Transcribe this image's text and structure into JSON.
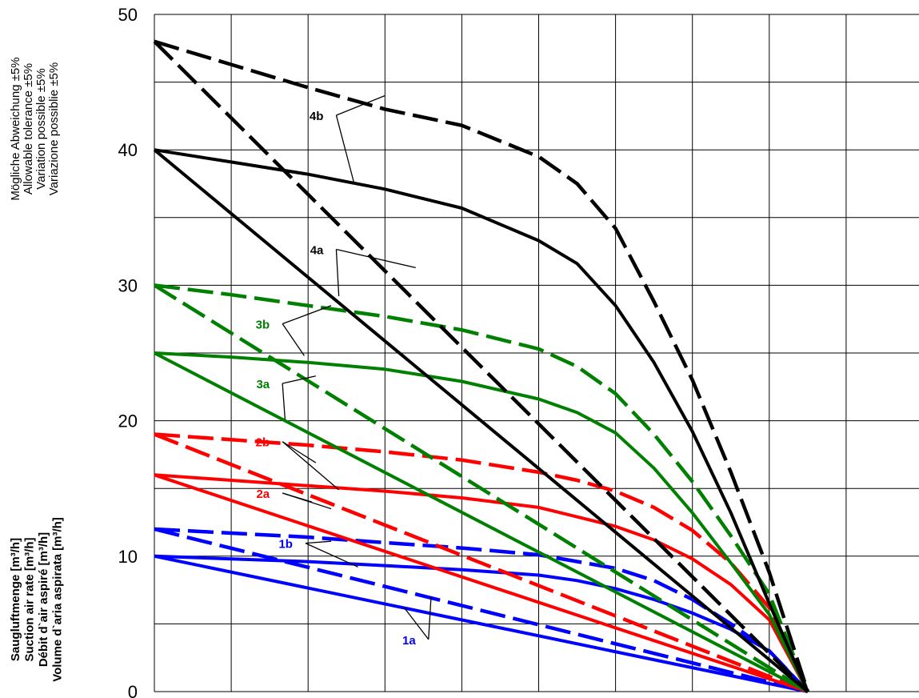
{
  "chart_data": {
    "type": "line",
    "ylim": [
      0,
      50
    ],
    "y_ticks": [
      "0",
      "10",
      "20",
      "30",
      "40",
      "50"
    ],
    "grid": true,
    "y_axis_label_lines": [
      "Saugluftmenge [m³/h]",
      "Suction air rate [m³/h]",
      "Débit d`air aspiré [m³/h]",
      "Volume d`aria aspirata [m³/h]"
    ],
    "tolerance_note_lines": [
      "Mögliche Abweichung ±5%",
      "Allowable tolerance ±5%",
      "Variation possible ±5%",
      "Variazione possiblie ±5%"
    ],
    "colors": {
      "1": "#0000ff",
      "2": "#ff0000",
      "3": "#008000",
      "4": "#000000"
    },
    "series": [
      {
        "label": "1a",
        "color": "#0000ff",
        "dashed": false,
        "x": [
          0,
          8.5
        ],
        "y": [
          10,
          0
        ]
      },
      {
        "label": "1a",
        "color": "#0000ff",
        "dashed": true,
        "x": [
          0,
          8.5
        ],
        "y": [
          12,
          0
        ]
      },
      {
        "label": "1b",
        "color": "#0000ff",
        "dashed": false,
        "x": [
          0,
          1,
          2,
          3,
          4,
          5,
          5.5,
          6,
          6.5,
          7,
          7.5,
          8,
          8.5
        ],
        "y": [
          10,
          9.8,
          9.6,
          9.3,
          9,
          8.6,
          8.2,
          7.6,
          6.8,
          5.8,
          4.6,
          3,
          0
        ]
      },
      {
        "label": "1b",
        "color": "#0000ff",
        "dashed": true,
        "x": [
          0,
          1,
          2,
          3,
          4,
          5,
          6,
          6.5,
          7,
          7.5,
          8,
          8.5
        ],
        "y": [
          12,
          11.7,
          11.4,
          11,
          10.6,
          10.1,
          9.1,
          8.2,
          6.8,
          5,
          3,
          0
        ]
      },
      {
        "label": "2a",
        "color": "#ff0000",
        "dashed": false,
        "x": [
          0,
          8.5
        ],
        "y": [
          16,
          0
        ]
      },
      {
        "label": "2a",
        "color": "#ff0000",
        "dashed": true,
        "x": [
          0,
          8.5
        ],
        "y": [
          19,
          0
        ]
      },
      {
        "label": "2b",
        "color": "#ff0000",
        "dashed": false,
        "x": [
          0,
          1,
          2,
          3,
          4,
          5,
          5.5,
          6,
          6.5,
          7,
          7.5,
          8,
          8.5
        ],
        "y": [
          16,
          15.6,
          15.2,
          14.8,
          14.3,
          13.6,
          12.9,
          12.2,
          11.2,
          9.8,
          7.9,
          5.3,
          0
        ]
      },
      {
        "label": "2b",
        "color": "#ff0000",
        "dashed": true,
        "x": [
          0,
          1,
          2,
          3,
          4,
          5,
          5.5,
          6,
          6.5,
          7,
          7.5,
          8,
          8.5
        ],
        "y": [
          19,
          18.6,
          18.2,
          17.7,
          17.1,
          16.2,
          15.6,
          14.8,
          13.6,
          11.9,
          9.5,
          6.2,
          0
        ]
      },
      {
        "label": "3a",
        "color": "#008000",
        "dashed": false,
        "x": [
          0,
          8.5
        ],
        "y": [
          25,
          0
        ]
      },
      {
        "label": "3a",
        "color": "#008000",
        "dashed": true,
        "x": [
          0,
          8.5
        ],
        "y": [
          30,
          0
        ]
      },
      {
        "label": "3b",
        "color": "#008000",
        "dashed": false,
        "x": [
          0,
          1,
          2,
          3,
          4,
          5,
          5.5,
          6,
          6.5,
          7,
          7.5,
          8,
          8.5
        ],
        "y": [
          25,
          24.7,
          24.3,
          23.8,
          22.9,
          21.6,
          20.6,
          19.1,
          16.5,
          13.2,
          9.5,
          5.7,
          0
        ]
      },
      {
        "label": "3b",
        "color": "#008000",
        "dashed": true,
        "x": [
          0,
          1,
          2,
          3,
          4,
          5,
          5.5,
          6,
          6.5,
          7,
          7.5,
          8,
          8.5
        ],
        "y": [
          30,
          29.3,
          28.5,
          27.7,
          26.7,
          25.3,
          24,
          22,
          19,
          15.5,
          11.5,
          7.2,
          0
        ]
      },
      {
        "label": "4a",
        "color": "#000000",
        "dashed": false,
        "x": [
          0,
          8.5
        ],
        "y": [
          40,
          0
        ]
      },
      {
        "label": "4a",
        "color": "#000000",
        "dashed": true,
        "x": [
          0,
          8.5
        ],
        "y": [
          48,
          0
        ]
      },
      {
        "label": "4b",
        "color": "#000000",
        "dashed": false,
        "x": [
          0,
          1,
          2,
          3,
          4,
          5,
          5.5,
          6,
          6.5,
          7,
          7.5,
          8,
          8.5
        ],
        "y": [
          40,
          39.1,
          38.2,
          37.1,
          35.7,
          33.3,
          31.6,
          28.5,
          24.3,
          19.2,
          13.2,
          6.5,
          0
        ]
      },
      {
        "label": "4b",
        "color": "#000000",
        "dashed": true,
        "x": [
          0,
          1,
          2,
          3,
          4,
          5,
          5.5,
          6,
          6.5,
          7,
          7.5,
          8,
          8.5
        ],
        "y": [
          48,
          46.3,
          44.6,
          43,
          41.8,
          39.5,
          37.5,
          34.2,
          28.8,
          23,
          16.2,
          8.8,
          0
        ]
      }
    ],
    "annotations": [
      {
        "text": "4b",
        "color": "#000000",
        "at": [
          2.2,
          42.2
        ],
        "targets": [
          [
            3.0,
            44.0
          ],
          [
            2.6,
            37.5
          ]
        ]
      },
      {
        "text": "4a",
        "color": "#000000",
        "at": [
          2.2,
          32.3
        ],
        "targets": [
          [
            3.4,
            31.3
          ],
          [
            2.4,
            29.2
          ]
        ]
      },
      {
        "text": "3b",
        "color": "#008000",
        "at": [
          1.5,
          26.8
        ],
        "targets": [
          [
            2.3,
            28.5
          ],
          [
            1.95,
            24.8
          ]
        ]
      },
      {
        "text": "3a",
        "color": "#008000",
        "at": [
          1.5,
          22.4
        ],
        "targets": [
          [
            2.1,
            23.3
          ],
          [
            1.7,
            20.1
          ]
        ]
      },
      {
        "text": "2b",
        "color": "#ff0000",
        "at": [
          1.5,
          18.1
        ],
        "targets": [
          [
            2.1,
            16.9
          ],
          [
            2.4,
            14.9
          ]
        ]
      },
      {
        "text": "2a",
        "color": "#ff0000",
        "at": [
          1.5,
          14.3
        ],
        "targets": [
          [
            2.05,
            14.0
          ],
          [
            2.3,
            13.5
          ]
        ]
      },
      {
        "text": "1b",
        "color": "#0000ff",
        "at": [
          1.8,
          10.6
        ],
        "targets": [
          [
            2.3,
            11.1
          ],
          [
            2.65,
            9.2
          ]
        ]
      },
      {
        "text": "1a",
        "color": "#0000ff",
        "at": [
          3.4,
          3.5
        ],
        "targets": [
          [
            3.6,
            7.0
          ],
          [
            3.25,
            6.2
          ]
        ]
      }
    ]
  }
}
